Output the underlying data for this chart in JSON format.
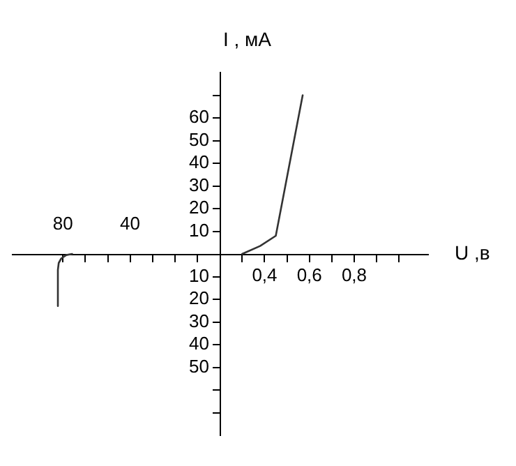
{
  "chart_data": {
    "type": "line",
    "xlabel": "U ,в",
    "ylabel": "I , мА",
    "xlim": [
      -0.725,
      1.13
    ],
    "xticks": [
      {
        "value": 0.3,
        "label": null
      },
      {
        "value": 0.4,
        "label": "0,4"
      },
      {
        "value": 0.5,
        "label": null
      },
      {
        "value": 0.6,
        "label": "0,6"
      },
      {
        "value": 0.7,
        "label": null
      },
      {
        "value": 0.8,
        "label": "0,8"
      },
      {
        "value": 0.9,
        "label": null
      },
      {
        "value": 1.0,
        "label": null
      }
    ],
    "x2lim": [
      110,
      -137.5
    ],
    "x2ticks": [
      {
        "value": 80,
        "label": "80"
      },
      {
        "value": 66.7,
        "label": null
      },
      {
        "value": 53.3,
        "label": null
      },
      {
        "value": 40,
        "label": "40"
      },
      {
        "value": 26.7,
        "label": null
      },
      {
        "value": 13.3,
        "label": null
      },
      {
        "value": 0,
        "label": null
      }
    ],
    "ylim": [
      -80,
      80
    ],
    "yticks": [
      {
        "value": -70,
        "label": null
      },
      {
        "value": -60,
        "label": null
      },
      {
        "value": -50,
        "label": "50"
      },
      {
        "value": -40,
        "label": "40"
      },
      {
        "value": -30,
        "label": "30"
      },
      {
        "value": -20,
        "label": "20"
      },
      {
        "value": -10,
        "label": "10"
      },
      {
        "value": 10,
        "label": "10"
      },
      {
        "value": 20,
        "label": "20"
      },
      {
        "value": 30,
        "label": "30"
      },
      {
        "value": 40,
        "label": "40"
      },
      {
        "value": 50,
        "label": "50"
      },
      {
        "value": 60,
        "label": "60"
      },
      {
        "value": 70,
        "label": null
      }
    ],
    "grid": false,
    "legend": false,
    "marker": "none",
    "line_style": "solid",
    "series": [
      {
        "color": "#333333",
        "x": [
          0.3,
          0.38,
          0.45,
          0.57
        ],
        "values": [
          0,
          3.5,
          8,
          70
        ]
      },
      {
        "color": "#333333",
        "axis": "x2",
        "x": [
          83,
          83,
          82.5,
          81,
          78,
          74.5
        ],
        "values": [
          -23,
          -7,
          -4,
          -2,
          -0.5,
          0
        ]
      }
    ]
  }
}
